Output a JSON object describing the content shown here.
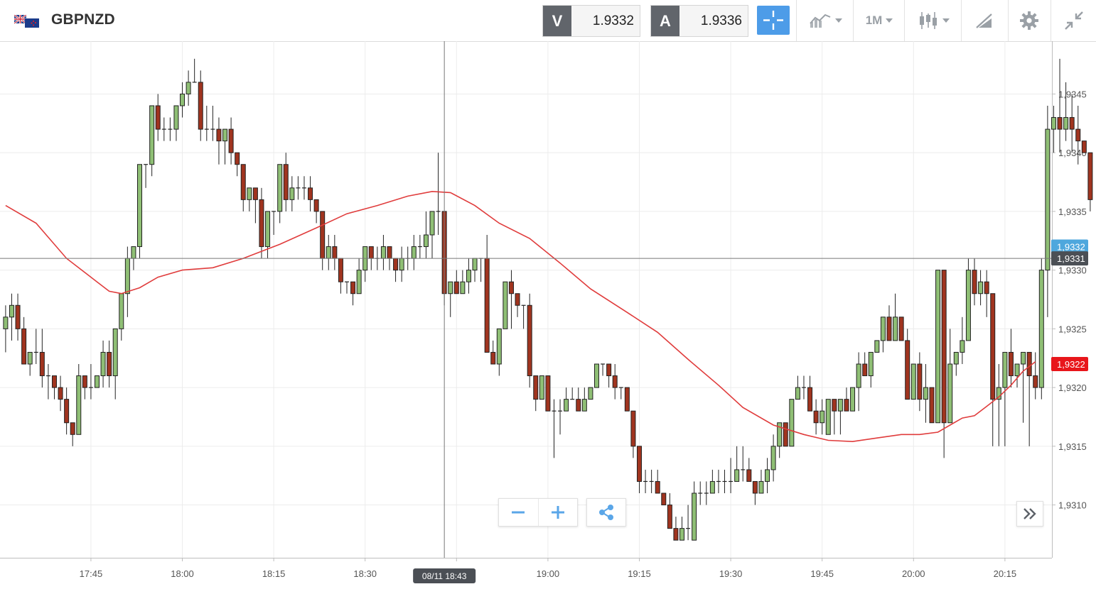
{
  "header": {
    "symbol": "GBPNZD",
    "bid_label": "V",
    "bid_value": "1.9332",
    "ask_label": "A",
    "ask_value": "1.9336",
    "timeframe": "1M",
    "icons": [
      "gb-nz-flag-icon",
      "crosshair-icon",
      "indicators-icon",
      "candlestick-icon",
      "drawing-tool-icon",
      "gear-icon",
      "collapse-icon"
    ]
  },
  "chart_data": {
    "type": "candlestick",
    "symbol": "GBPNZD",
    "interval_minutes": 1,
    "ylim": [
      1.93055,
      1.93495
    ],
    "y_ticks": [
      "1,9310",
      "1,9315",
      "1,9320",
      "1,9325",
      "1,9330",
      "1,9335",
      "1,9340",
      "1,9345"
    ],
    "x_ticks": [
      "17:45",
      "18:00",
      "18:15",
      "18:30",
      "18:45",
      "19:00",
      "19:15",
      "19:30",
      "19:45",
      "20:00",
      "20:15"
    ],
    "x_tick_minutes": [
      1065,
      1080,
      1095,
      1110,
      1125,
      1140,
      1155,
      1170,
      1185,
      1200,
      1215
    ],
    "x_range_minutes": [
      1051,
      1224
    ],
    "grid": true,
    "crosshair": {
      "time_label": "08/11 18:43",
      "time_minutes": 1123,
      "price_label": "1,9331",
      "price": 1.9331
    },
    "price_tags": [
      {
        "label": "1,9332",
        "price": 1.9332,
        "color": "#4ea7dd"
      },
      {
        "label": "1,9331",
        "price": 1.9331,
        "color": "#4b4f55"
      },
      {
        "label": "1,9322",
        "price": 1.9322,
        "color": "#e8161b"
      }
    ],
    "colors": {
      "up": "#8fbf75",
      "down": "#a0341f",
      "outline": "#222222",
      "ma": "#e03c3c"
    },
    "candles_ohlc": [
      [
        1.9325,
        1.9327,
        1.9323,
        1.9326
      ],
      [
        1.9326,
        1.9328,
        1.9324,
        1.9327
      ],
      [
        1.9327,
        1.9328,
        1.9324,
        1.9325
      ],
      [
        1.9325,
        1.9326,
        1.9322,
        1.9322
      ],
      [
        1.9322,
        1.9323,
        1.9321,
        1.9323
      ],
      [
        1.9323,
        1.9325,
        1.9322,
        1.9323
      ],
      [
        1.9323,
        1.9325,
        1.932,
        1.9321
      ],
      [
        1.9321,
        1.9322,
        1.9319,
        1.9321
      ],
      [
        1.9321,
        1.9321,
        1.9319,
        1.932
      ],
      [
        1.932,
        1.9321,
        1.9318,
        1.9319
      ],
      [
        1.9319,
        1.932,
        1.9316,
        1.9317
      ],
      [
        1.9317,
        1.9317,
        1.9315,
        1.9316
      ],
      [
        1.9316,
        1.9322,
        1.9316,
        1.9321
      ],
      [
        1.9321,
        1.9321,
        1.9319,
        1.932
      ],
      [
        1.932,
        1.9322,
        1.9319,
        1.932
      ],
      [
        1.932,
        1.9321,
        1.932,
        1.9321
      ],
      [
        1.9321,
        1.9324,
        1.932,
        1.9323
      ],
      [
        1.9323,
        1.9324,
        1.932,
        1.9321
      ],
      [
        1.9321,
        1.9324,
        1.9319,
        1.9325
      ],
      [
        1.9325,
        1.9328,
        1.9324,
        1.9328
      ],
      [
        1.9328,
        1.9332,
        1.9326,
        1.9331
      ],
      [
        1.9331,
        1.9331,
        1.933,
        1.9332
      ],
      [
        1.9332,
        1.9339,
        1.9331,
        1.9339
      ],
      [
        1.9339,
        1.9339,
        1.9337,
        1.9339
      ],
      [
        1.9339,
        1.9343,
        1.9338,
        1.9344
      ],
      [
        1.9344,
        1.9345,
        1.9341,
        1.9342
      ],
      [
        1.9342,
        1.9343,
        1.9341,
        1.9342
      ],
      [
        1.9342,
        1.9343,
        1.9341,
        1.9342
      ],
      [
        1.9342,
        1.9344,
        1.9341,
        1.9344
      ],
      [
        1.9344,
        1.9346,
        1.9343,
        1.9345
      ],
      [
        1.9345,
        1.9347,
        1.9344,
        1.9346
      ],
      [
        1.9346,
        1.9348,
        1.9346,
        1.9346
      ],
      [
        1.9346,
        1.9347,
        1.9341,
        1.9342
      ],
      [
        1.9342,
        1.9344,
        1.9341,
        1.9342
      ],
      [
        1.9342,
        1.9344,
        1.9341,
        1.9342
      ],
      [
        1.9342,
        1.9343,
        1.9339,
        1.9341
      ],
      [
        1.9341,
        1.9342,
        1.9339,
        1.9342
      ],
      [
        1.9342,
        1.9343,
        1.9339,
        1.934
      ],
      [
        1.934,
        1.934,
        1.9338,
        1.9339
      ],
      [
        1.9339,
        1.9339,
        1.9335,
        1.9336
      ],
      [
        1.9336,
        1.9336,
        1.9335,
        1.9337
      ],
      [
        1.9337,
        1.9337,
        1.9334,
        1.9336
      ],
      [
        1.9336,
        1.9337,
        1.9331,
        1.9332
      ],
      [
        1.9332,
        1.9335,
        1.9331,
        1.9335
      ],
      [
        1.9335,
        1.9335,
        1.9333,
        1.9335
      ],
      [
        1.9335,
        1.9339,
        1.9334,
        1.9339
      ],
      [
        1.9339,
        1.934,
        1.9335,
        1.9336
      ],
      [
        1.9336,
        1.9338,
        1.9335,
        1.9337
      ],
      [
        1.9337,
        1.9338,
        1.9336,
        1.9337
      ],
      [
        1.9337,
        1.9338,
        1.9336,
        1.9337
      ],
      [
        1.9337,
        1.9338,
        1.9335,
        1.9336
      ],
      [
        1.9336,
        1.9336,
        1.9334,
        1.9335
      ],
      [
        1.9335,
        1.9335,
        1.933,
        1.9331
      ],
      [
        1.9331,
        1.9333,
        1.933,
        1.9332
      ],
      [
        1.9332,
        1.9333,
        1.933,
        1.9331
      ],
      [
        1.9331,
        1.9331,
        1.9328,
        1.9329
      ],
      [
        1.9329,
        1.9329,
        1.9328,
        1.9329
      ],
      [
        1.9329,
        1.9329,
        1.9327,
        1.9328
      ],
      [
        1.9328,
        1.9331,
        1.9328,
        1.933
      ],
      [
        1.933,
        1.9332,
        1.9329,
        1.9332
      ],
      [
        1.9332,
        1.9332,
        1.933,
        1.9331
      ],
      [
        1.9331,
        1.9332,
        1.933,
        1.9331
      ],
      [
        1.9331,
        1.9333,
        1.933,
        1.9332
      ],
      [
        1.9332,
        1.9332,
        1.933,
        1.9331
      ],
      [
        1.9331,
        1.9331,
        1.9329,
        1.933
      ],
      [
        1.933,
        1.9332,
        1.9329,
        1.9331
      ],
      [
        1.9331,
        1.9332,
        1.933,
        1.9331
      ],
      [
        1.9331,
        1.9333,
        1.933,
        1.9332
      ],
      [
        1.9332,
        1.9333,
        1.9331,
        1.9332
      ],
      [
        1.9332,
        1.9335,
        1.9331,
        1.9333
      ],
      [
        1.9333,
        1.9335,
        1.9331,
        1.9335
      ],
      [
        1.9335,
        1.934,
        1.9333,
        1.9335
      ],
      [
        1.9335,
        1.9335,
        1.9327,
        1.9328
      ],
      [
        1.9328,
        1.9329,
        1.9326,
        1.9329
      ],
      [
        1.9329,
        1.933,
        1.9328,
        1.9328
      ],
      [
        1.9328,
        1.933,
        1.9328,
        1.9329
      ],
      [
        1.9329,
        1.9331,
        1.9328,
        1.933
      ],
      [
        1.933,
        1.9331,
        1.9329,
        1.9331
      ],
      [
        1.9331,
        1.9331,
        1.9329,
        1.9331
      ],
      [
        1.9331,
        1.9333,
        1.9323,
        1.9323
      ],
      [
        1.9323,
        1.9324,
        1.9322,
        1.9322
      ],
      [
        1.9322,
        1.9325,
        1.9321,
        1.9325
      ],
      [
        1.9325,
        1.9328,
        1.9325,
        1.9329
      ],
      [
        1.9329,
        1.933,
        1.9325,
        1.9328
      ],
      [
        1.9328,
        1.9328,
        1.9326,
        1.9327
      ],
      [
        1.9327,
        1.9327,
        1.9325,
        1.9327
      ],
      [
        1.9327,
        1.9328,
        1.932,
        1.9321
      ],
      [
        1.9321,
        1.9321,
        1.9318,
        1.9319
      ],
      [
        1.9319,
        1.9321,
        1.9319,
        1.9321
      ],
      [
        1.9321,
        1.9321,
        1.9318,
        1.9318
      ],
      [
        1.9318,
        1.9319,
        1.9314,
        1.9318
      ],
      [
        1.9318,
        1.9319,
        1.9316,
        1.9318
      ],
      [
        1.9318,
        1.932,
        1.9318,
        1.9319
      ],
      [
        1.9319,
        1.932,
        1.9319,
        1.9319
      ],
      [
        1.9319,
        1.932,
        1.9318,
        1.9318
      ],
      [
        1.9318,
        1.932,
        1.9318,
        1.9319
      ],
      [
        1.9319,
        1.932,
        1.9319,
        1.932
      ],
      [
        1.932,
        1.9322,
        1.932,
        1.9322
      ],
      [
        1.9322,
        1.9322,
        1.9321,
        1.9322
      ],
      [
        1.9322,
        1.9322,
        1.932,
        1.9321
      ],
      [
        1.9321,
        1.9322,
        1.9319,
        1.932
      ],
      [
        1.932,
        1.932,
        1.9319,
        1.932
      ],
      [
        1.932,
        1.932,
        1.9318,
        1.9318
      ],
      [
        1.9318,
        1.9318,
        1.9314,
        1.9315
      ],
      [
        1.9315,
        1.9315,
        1.9311,
        1.9312
      ],
      [
        1.9312,
        1.9313,
        1.9311,
        1.9312
      ],
      [
        1.9312,
        1.9313,
        1.9311,
        1.9312
      ],
      [
        1.9312,
        1.9313,
        1.9311,
        1.9311
      ],
      [
        1.9311,
        1.9311,
        1.931,
        1.931
      ],
      [
        1.931,
        1.9311,
        1.9308,
        1.9308
      ],
      [
        1.9308,
        1.9309,
        1.9307,
        1.9307
      ],
      [
        1.9307,
        1.9309,
        1.9307,
        1.9308
      ],
      [
        1.9308,
        1.931,
        1.9307,
        1.9308
      ],
      [
        1.9307,
        1.9312,
        1.9307,
        1.9311
      ],
      [
        1.9311,
        1.9312,
        1.931,
        1.9311
      ],
      [
        1.9311,
        1.9312,
        1.931,
        1.9311
      ],
      [
        1.9311,
        1.9313,
        1.9311,
        1.9312
      ],
      [
        1.9312,
        1.9313,
        1.9311,
        1.9312
      ],
      [
        1.9312,
        1.9313,
        1.9311,
        1.9312
      ],
      [
        1.9312,
        1.9314,
        1.9311,
        1.9312
      ],
      [
        1.9312,
        1.9315,
        1.9312,
        1.9313
      ],
      [
        1.9313,
        1.9315,
        1.9312,
        1.9313
      ],
      [
        1.9313,
        1.9314,
        1.9312,
        1.9312
      ],
      [
        1.9312,
        1.9312,
        1.931,
        1.9311
      ],
      [
        1.9311,
        1.9313,
        1.9311,
        1.9312
      ],
      [
        1.9312,
        1.9314,
        1.9311,
        1.9313
      ],
      [
        1.9313,
        1.9316,
        1.9312,
        1.9315
      ],
      [
        1.9315,
        1.9317,
        1.9314,
        1.9317
      ],
      [
        1.9317,
        1.9317,
        1.9315,
        1.9315
      ],
      [
        1.9315,
        1.9319,
        1.9315,
        1.9319
      ],
      [
        1.9319,
        1.9321,
        1.9319,
        1.932
      ],
      [
        1.932,
        1.9321,
        1.9319,
        1.932
      ],
      [
        1.932,
        1.9321,
        1.9318,
        1.9318
      ],
      [
        1.9318,
        1.9319,
        1.9316,
        1.9317
      ],
      [
        1.9317,
        1.9319,
        1.9316,
        1.9318
      ],
      [
        1.9316,
        1.9319,
        1.9316,
        1.9319
      ],
      [
        1.9319,
        1.9319,
        1.9316,
        1.9318
      ],
      [
        1.9318,
        1.9319,
        1.9316,
        1.9319
      ],
      [
        1.9319,
        1.932,
        1.9318,
        1.9318
      ],
      [
        1.9318,
        1.932,
        1.9318,
        1.932
      ],
      [
        1.932,
        1.9323,
        1.9318,
        1.9322
      ],
      [
        1.9322,
        1.9323,
        1.9321,
        1.9321
      ],
      [
        1.9321,
        1.9323,
        1.932,
        1.9323
      ],
      [
        1.9323,
        1.9324,
        1.9323,
        1.9324
      ],
      [
        1.9324,
        1.9326,
        1.9323,
        1.9326
      ],
      [
        1.9326,
        1.9327,
        1.9324,
        1.9324
      ],
      [
        1.9324,
        1.9328,
        1.9324,
        1.9326
      ],
      [
        1.9326,
        1.9326,
        1.9324,
        1.9324
      ],
      [
        1.9324,
        1.9325,
        1.9319,
        1.9319
      ],
      [
        1.9319,
        1.9322,
        1.9319,
        1.9322
      ],
      [
        1.9322,
        1.9323,
        1.9318,
        1.9319
      ],
      [
        1.9319,
        1.9322,
        1.9317,
        1.932
      ],
      [
        1.932,
        1.932,
        1.9317,
        1.9317
      ],
      [
        1.9317,
        1.933,
        1.9317,
        1.933
      ],
      [
        1.933,
        1.933,
        1.9314,
        1.9317
      ],
      [
        1.9317,
        1.9325,
        1.9317,
        1.9322
      ],
      [
        1.9322,
        1.9323,
        1.9321,
        1.9323
      ],
      [
        1.9323,
        1.9326,
        1.9322,
        1.9324
      ],
      [
        1.9324,
        1.9331,
        1.9324,
        1.933
      ],
      [
        1.933,
        1.9331,
        1.9327,
        1.9328
      ],
      [
        1.9328,
        1.933,
        1.9327,
        1.9329
      ],
      [
        1.9329,
        1.933,
        1.9326,
        1.9328
      ],
      [
        1.9328,
        1.9328,
        1.9315,
        1.9319
      ],
      [
        1.9319,
        1.9322,
        1.9315,
        1.932
      ],
      [
        1.932,
        1.9323,
        1.9315,
        1.9323
      ],
      [
        1.9323,
        1.9325,
        1.932,
        1.9321
      ],
      [
        1.9321,
        1.9322,
        1.932,
        1.9322
      ],
      [
        1.9322,
        1.9323,
        1.9317,
        1.9323
      ],
      [
        1.9323,
        1.9323,
        1.9315,
        1.9321
      ],
      [
        1.9321,
        1.9323,
        1.9319,
        1.932
      ],
      [
        1.932,
        1.9331,
        1.9319,
        1.933
      ],
      [
        1.933,
        1.9344,
        1.9326,
        1.9342
      ],
      [
        1.9342,
        1.9344,
        1.934,
        1.9343
      ],
      [
        1.9343,
        1.9348,
        1.934,
        1.9342
      ],
      [
        1.9342,
        1.9346,
        1.9341,
        1.9343
      ],
      [
        1.9343,
        1.9345,
        1.934,
        1.9342
      ],
      [
        1.9342,
        1.9344,
        1.9339,
        1.9341
      ],
      [
        1.9341,
        1.9341,
        1.934,
        1.934
      ],
      [
        1.934,
        1.934,
        1.9335,
        1.9336
      ]
    ],
    "moving_average": [
      [
        1051,
        1.93355
      ],
      [
        1056,
        1.9334
      ],
      [
        1061,
        1.9331
      ],
      [
        1066,
        1.9329
      ],
      [
        1068,
        1.93282
      ],
      [
        1070,
        1.9328
      ],
      [
        1073,
        1.93285
      ],
      [
        1076,
        1.93294
      ],
      [
        1080,
        1.933
      ],
      [
        1085,
        1.93302
      ],
      [
        1090,
        1.9331
      ],
      [
        1096,
        1.93322
      ],
      [
        1102,
        1.93336
      ],
      [
        1107,
        1.93348
      ],
      [
        1112,
        1.93355
      ],
      [
        1117,
        1.93363
      ],
      [
        1121,
        1.93367
      ],
      [
        1124,
        1.93366
      ],
      [
        1128,
        1.93355
      ],
      [
        1132,
        1.9334
      ],
      [
        1137,
        1.93327
      ],
      [
        1142,
        1.93306
      ],
      [
        1147,
        1.93284
      ],
      [
        1153,
        1.93264
      ],
      [
        1158,
        1.93247
      ],
      [
        1163,
        1.93224
      ],
      [
        1168,
        1.93202
      ],
      [
        1172,
        1.93183
      ],
      [
        1177,
        1.93168
      ],
      [
        1182,
        1.9316
      ],
      [
        1186,
        1.93155
      ],
      [
        1190,
        1.93154
      ],
      [
        1194,
        1.93157
      ],
      [
        1198,
        1.9316
      ],
      [
        1201,
        1.9316
      ],
      [
        1204,
        1.93162
      ],
      [
        1206,
        1.93168
      ],
      [
        1208,
        1.93174
      ],
      [
        1210,
        1.93176
      ],
      [
        1212,
        1.93184
      ],
      [
        1214,
        1.93192
      ],
      [
        1216,
        1.93202
      ],
      [
        1218,
        1.93214
      ],
      [
        1220,
        1.93222
      ]
    ]
  }
}
